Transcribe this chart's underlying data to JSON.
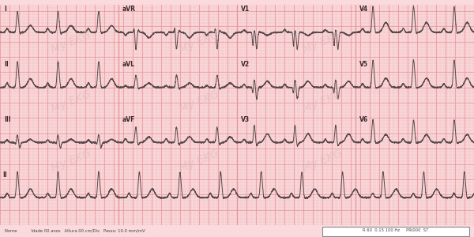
{
  "bg_color": "#fadadd",
  "grid_minor_color": "#f0b8b8",
  "grid_major_color": "#e89898",
  "ecg_color": "#5a4a4a",
  "watermark_color": "#ddb8b8",
  "watermark_text": "My EKG",
  "label_color": "#3a2a2a",
  "bottom_text_left": "Nome           Idade 00 anos   Altura 00 cm/Div   Passo: 10.0 mm/mV",
  "bottom_text_right": "R 60  0.15 100 Hz     PRI000  ST",
  "figsize": [
    6.0,
    3.0
  ],
  "dpi": 100,
  "leads_row1": [
    "I",
    "aVR",
    "V1",
    "V4"
  ],
  "leads_row2": [
    "II",
    "aVL",
    "V2",
    "V5"
  ],
  "leads_row3": [
    "III",
    "aVF",
    "V3",
    "V6"
  ],
  "leads_row4": [
    "II"
  ],
  "bpm": 70,
  "fs": 500
}
